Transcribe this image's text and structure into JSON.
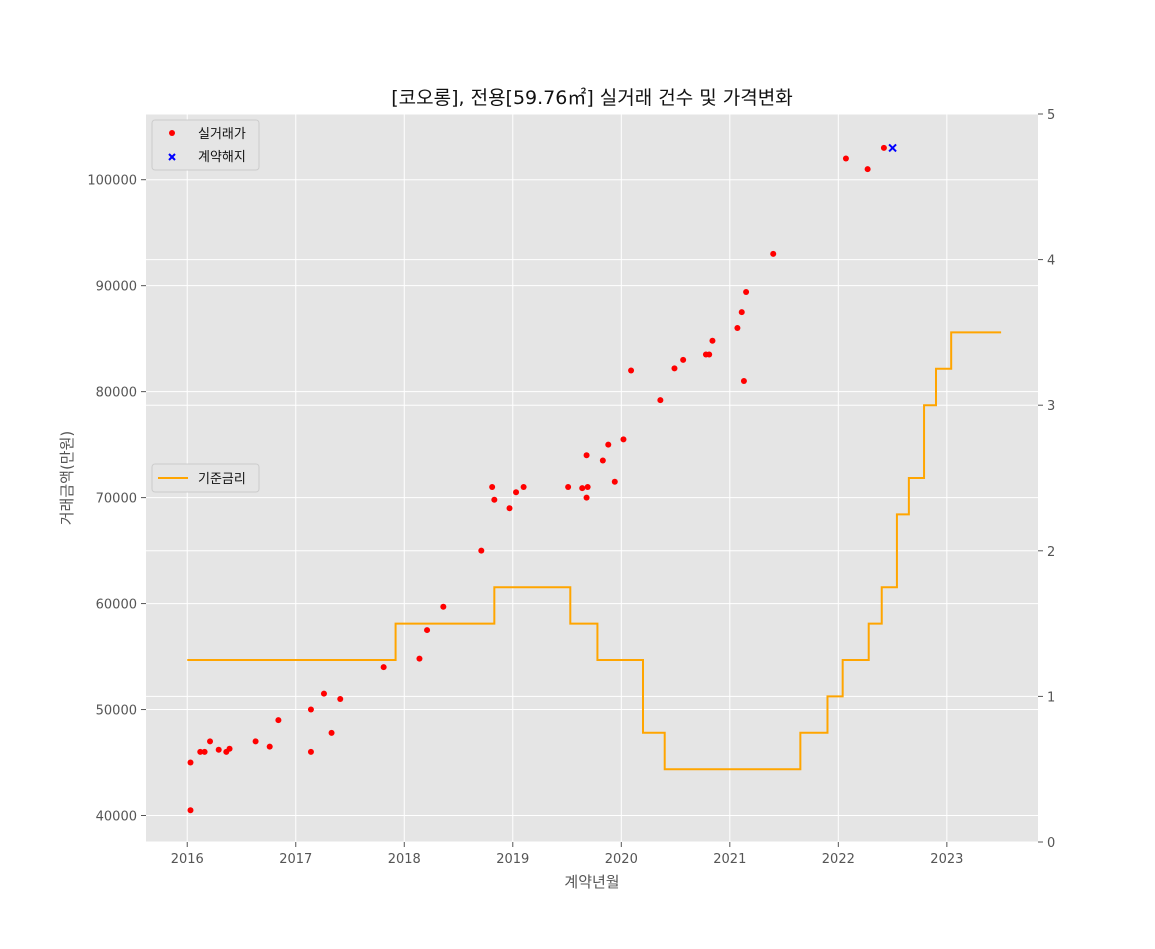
{
  "chart_data": {
    "type": "scatter",
    "title": "[코오롱], 전용[59.76㎡] 실거래 건수 및 가격변화",
    "xlabel": "계약년월",
    "ylabel": "거래금액(만원)",
    "x_ticks": [
      "2016",
      "2017",
      "2018",
      "2019",
      "2020",
      "2021",
      "2022",
      "2023"
    ],
    "x_range": [
      2015.62,
      2023.84
    ],
    "y_ticks": [
      40000,
      50000,
      60000,
      70000,
      80000,
      90000,
      100000
    ],
    "y_range": [
      37500,
      106200
    ],
    "y2_ticks": [
      0,
      1,
      2,
      3,
      4,
      5
    ],
    "y2_range": [
      0,
      5
    ],
    "grid": true,
    "legends": [
      {
        "placement": "top-left",
        "entries": [
          "실거래가",
          "계약해지"
        ]
      },
      {
        "placement": "center-left",
        "entries": [
          "기준금리"
        ]
      }
    ],
    "colors": {
      "trades": "#ff0000",
      "cancelled": "#0000ff",
      "base_rate": "#ffa500",
      "plot_bg": "#e5e5e5",
      "grid": "#ffffff"
    },
    "series": [
      {
        "name": "실거래가",
        "type": "scatter",
        "marker": "circle",
        "axis": "left",
        "points": [
          [
            2016.03,
            40500
          ],
          [
            2016.03,
            45000
          ],
          [
            2016.12,
            46000
          ],
          [
            2016.16,
            46000
          ],
          [
            2016.21,
            47000
          ],
          [
            2016.29,
            46200
          ],
          [
            2016.36,
            46000
          ],
          [
            2016.39,
            46300
          ],
          [
            2016.63,
            47000
          ],
          [
            2016.76,
            46500
          ],
          [
            2016.84,
            49000
          ],
          [
            2017.14,
            50000
          ],
          [
            2017.14,
            46000
          ],
          [
            2017.26,
            51500
          ],
          [
            2017.33,
            47800
          ],
          [
            2017.41,
            51000
          ],
          [
            2017.81,
            54000
          ],
          [
            2018.14,
            54800
          ],
          [
            2018.21,
            57500
          ],
          [
            2018.36,
            59700
          ],
          [
            2018.71,
            65000
          ],
          [
            2018.81,
            71000
          ],
          [
            2018.83,
            69800
          ],
          [
            2018.97,
            69000
          ],
          [
            2019.03,
            70500
          ],
          [
            2019.1,
            71000
          ],
          [
            2019.51,
            71000
          ],
          [
            2019.64,
            70900
          ],
          [
            2019.68,
            74000
          ],
          [
            2019.68,
            70000
          ],
          [
            2019.69,
            71000
          ],
          [
            2019.83,
            73500
          ],
          [
            2019.88,
            75000
          ],
          [
            2019.94,
            71500
          ],
          [
            2020.02,
            75500
          ],
          [
            2020.09,
            82000
          ],
          [
            2020.36,
            79200
          ],
          [
            2020.49,
            82200
          ],
          [
            2020.57,
            83000
          ],
          [
            2020.78,
            83500
          ],
          [
            2020.81,
            83500
          ],
          [
            2020.84,
            84800
          ],
          [
            2021.07,
            86000
          ],
          [
            2021.11,
            87500
          ],
          [
            2021.13,
            81000
          ],
          [
            2021.15,
            89400
          ],
          [
            2021.4,
            93000
          ],
          [
            2022.07,
            102000
          ],
          [
            2022.27,
            101000
          ],
          [
            2022.42,
            103000
          ]
        ]
      },
      {
        "name": "계약해지",
        "type": "scatter",
        "marker": "x",
        "axis": "left",
        "points": [
          [
            2022.5,
            103000
          ]
        ]
      },
      {
        "name": "기준금리",
        "type": "step",
        "axis": "right",
        "points": [
          [
            2016.0,
            1.25
          ],
          [
            2017.92,
            1.5
          ],
          [
            2018.83,
            1.75
          ],
          [
            2019.53,
            1.5
          ],
          [
            2019.78,
            1.25
          ],
          [
            2020.2,
            0.75
          ],
          [
            2020.4,
            0.5
          ],
          [
            2021.65,
            0.75
          ],
          [
            2021.9,
            1.0
          ],
          [
            2022.04,
            1.25
          ],
          [
            2022.28,
            1.5
          ],
          [
            2022.4,
            1.75
          ],
          [
            2022.54,
            2.25
          ],
          [
            2022.65,
            2.5
          ],
          [
            2022.79,
            3.0
          ],
          [
            2022.9,
            3.25
          ],
          [
            2023.04,
            3.5
          ],
          [
            2023.5,
            3.5
          ]
        ]
      }
    ]
  }
}
